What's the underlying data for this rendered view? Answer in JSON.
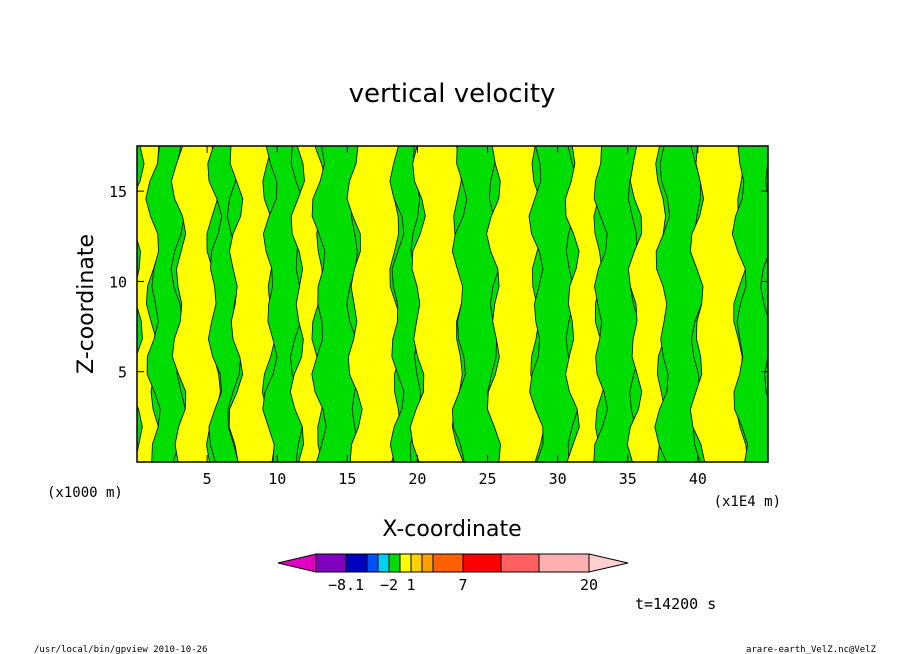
{
  "chart_data": {
    "type": "heatmap",
    "title": "vertical velocity",
    "xlabel": "X-coordinate",
    "ylabel": "Z-coordinate",
    "x_axis_unit_left": "(x1000 m)",
    "x_axis_unit_right": "(x1E4 m)",
    "xlim": [
      0,
      45
    ],
    "ylim": [
      0,
      17.5
    ],
    "x_ticks": [
      "5",
      "10",
      "15",
      "20",
      "25",
      "30",
      "35",
      "40"
    ],
    "x_tick_values": [
      5,
      10,
      15,
      20,
      25,
      30,
      35,
      40
    ],
    "y_ticks": [
      "5",
      "10",
      "15"
    ],
    "y_tick_values": [
      5,
      10,
      15
    ],
    "colors": {
      "positive_small": "#ffff00",
      "negative_small": "#00dd00",
      "contour_line": "#000000"
    },
    "bands": [
      {
        "x0": 0.0,
        "x1": 1.2,
        "class": "positive_small"
      },
      {
        "x0": 1.2,
        "x1": 3.0,
        "class": "negative_small"
      },
      {
        "x0": 3.0,
        "x1": 5.5,
        "class": "positive_small"
      },
      {
        "x0": 5.5,
        "x1": 7.0,
        "class": "negative_small"
      },
      {
        "x0": 7.0,
        "x1": 9.5,
        "class": "positive_small"
      },
      {
        "x0": 9.5,
        "x1": 11.5,
        "class": "negative_small"
      },
      {
        "x0": 11.5,
        "x1": 13.0,
        "class": "positive_small"
      },
      {
        "x0": 13.0,
        "x1": 15.5,
        "class": "negative_small"
      },
      {
        "x0": 15.5,
        "x1": 18.5,
        "class": "positive_small"
      },
      {
        "x0": 18.5,
        "x1": 20.0,
        "class": "negative_small"
      },
      {
        "x0": 20.0,
        "x1": 23.0,
        "class": "positive_small"
      },
      {
        "x0": 23.0,
        "x1": 25.5,
        "class": "negative_small"
      },
      {
        "x0": 25.5,
        "x1": 28.5,
        "class": "positive_small"
      },
      {
        "x0": 28.5,
        "x1": 31.0,
        "class": "negative_small"
      },
      {
        "x0": 31.0,
        "x1": 33.0,
        "class": "positive_small"
      },
      {
        "x0": 33.0,
        "x1": 35.5,
        "class": "negative_small"
      },
      {
        "x0": 35.5,
        "x1": 37.5,
        "class": "positive_small"
      },
      {
        "x0": 37.5,
        "x1": 40.0,
        "class": "negative_small"
      },
      {
        "x0": 40.0,
        "x1": 43.0,
        "class": "positive_small"
      },
      {
        "x0": 43.0,
        "x1": 45.0,
        "class": "negative_small"
      }
    ],
    "colorbar": {
      "colors": [
        "#e000c0",
        "#8000c0",
        "#0000c0",
        "#0050ff",
        "#00d0f0",
        "#00dd00",
        "#ffff00",
        "#ffd000",
        "#ffa000",
        "#ff6000",
        "#ff0000",
        "#ff6060",
        "#ffb0b0",
        "#ffd0d0"
      ],
      "labels": [
        {
          "text": "−8.1",
          "after_index": 1
        },
        {
          "text": "−2",
          "after_index": 4
        },
        {
          "text": "1",
          "after_index": 6
        },
        {
          "text": "7",
          "after_index": 9
        },
        {
          "text": "20",
          "after_index": 12
        }
      ]
    }
  },
  "time_label": "t=14200 s",
  "footer": {
    "left": "/usr/local/bin/gpview  2010-10-26",
    "right": "arare-earth_VelZ.nc@VelZ"
  }
}
